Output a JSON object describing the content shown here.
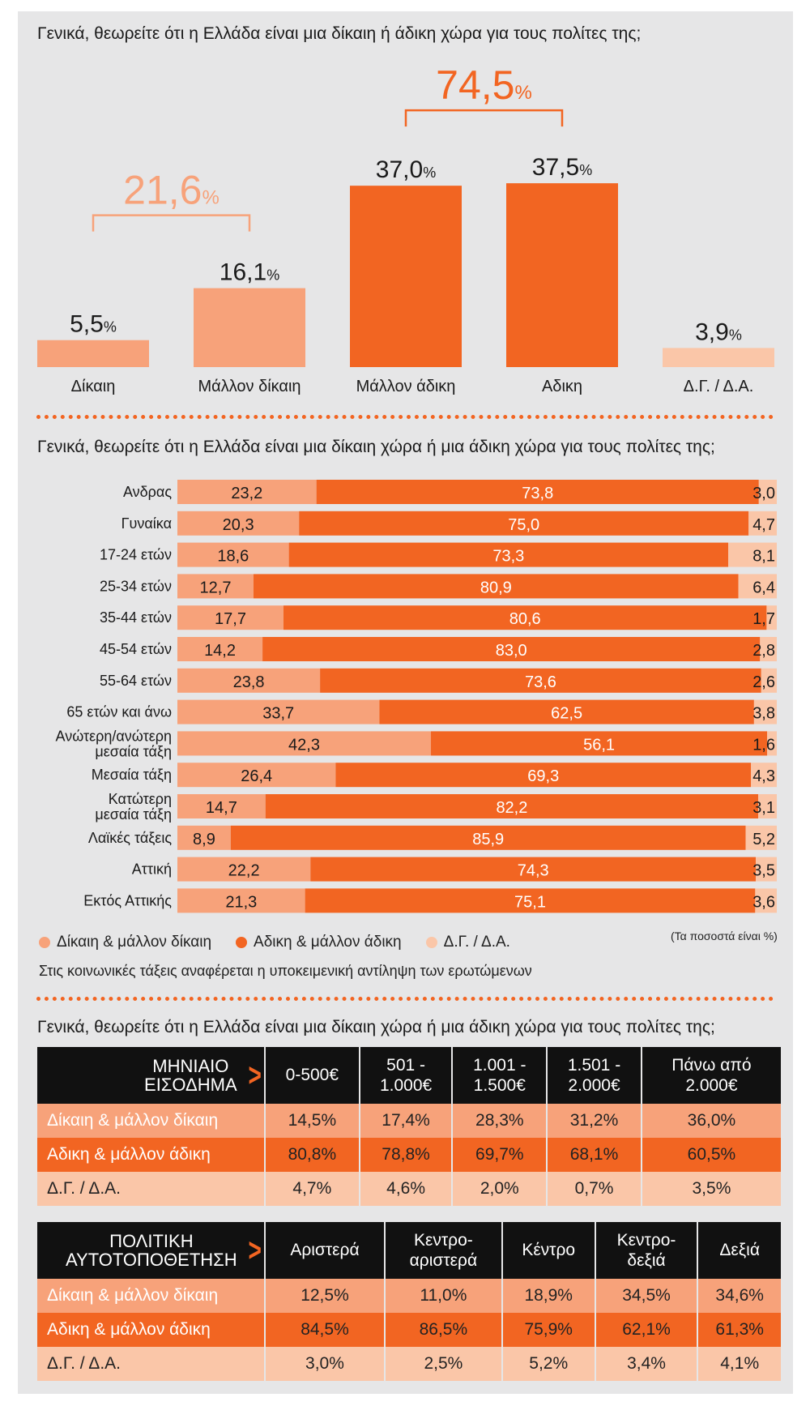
{
  "section1": {
    "question": "Γενικά, θεωρείτε  ότι η Ελλάδα είναι μια δίκαιη ή άδικη χώρα για τους πολίτες της;",
    "group_left": {
      "value": "21,6",
      "unit": "%"
    },
    "group_right": {
      "value": "74,5",
      "unit": "%"
    }
  },
  "section2": {
    "question": "Γενικά, θεωρείτε ότι η Ελλάδα είναι μια δίκαιη χώρα ή μια άδικη χώρα για τους πολίτες της;",
    "legend": [
      "Δίκαιη & μάλλον δίκαιη",
      "Αδικη & μάλλον άδικη",
      "Δ.Γ. / Δ.Α."
    ],
    "units_note": "(Τα ποσοστά είναι %)",
    "footnote": "Στις κοινωνικές τάξεις αναφέρεται η υποκειμενική αντίληψη των ερωτώμενων"
  },
  "section3": {
    "question": "Γενικά, θεωρείτε ότι η Ελλάδα είναι μια δίκαιη χώρα ή μια άδικη χώρα για τους πολίτες της;",
    "income": {
      "header_l1": "ΜΗΝΙΑΙΟ",
      "header_l2": "ΕΙΣΟΔΗΜΑ",
      "cols": [
        [
          "0-500€",
          ""
        ],
        [
          "501 -",
          "1.000€"
        ],
        [
          "1.001 -",
          "1.500€"
        ],
        [
          "1.501 -",
          "2.000€"
        ],
        [
          "Πάνω από",
          "2.000€"
        ]
      ],
      "rows": [
        {
          "label": "Δίκαιη & μάλλον δίκαιη",
          "values": [
            "14,5%",
            "17,4%",
            "28,3%",
            "31,2%",
            "36,0%"
          ]
        },
        {
          "label": "Αδικη & μάλλον άδικη",
          "values": [
            "80,8%",
            "78,8%",
            "69,7%",
            "68,1%",
            "60,5%"
          ]
        },
        {
          "label": "Δ.Γ. / Δ.Α.",
          "values": [
            "4,7%",
            "4,6%",
            "2,0%",
            "0,7%",
            "3,5%"
          ]
        }
      ]
    },
    "politics": {
      "header_l1": "ΠΟΛΙΤΙΚΗ",
      "header_l2": "ΑΥΤΟΤΟΠΟΘΕΤΗΣΗ",
      "cols": [
        [
          "Αριστερά",
          ""
        ],
        [
          "Κεντρο-",
          "αριστερά"
        ],
        [
          "Κέντρο",
          ""
        ],
        [
          "Κεντρο-",
          "δεξιά"
        ],
        [
          "Δεξιά",
          ""
        ]
      ],
      "rows": [
        {
          "label": "Δίκαιη & μάλλον δίκαιη",
          "values": [
            "12,5%",
            "11,0%",
            "18,9%",
            "34,5%",
            "34,6%"
          ]
        },
        {
          "label": "Αδικη & μάλλον άδικη",
          "values": [
            "84,5%",
            "86,5%",
            "75,9%",
            "62,1%",
            "61,3%"
          ]
        },
        {
          "label": "Δ.Γ. / Δ.Α.",
          "values": [
            "3,0%",
            "2,5%",
            "5,2%",
            "3,4%",
            "4,1%"
          ]
        }
      ]
    }
  },
  "chart_data": [
    {
      "type": "bar",
      "title": "Γενικά, θεωρείτε  ότι η Ελλάδα είναι μια δίκαιη ή άδικη χώρα για τους πολίτες της;",
      "categories": [
        "Δίκαιη",
        "Μάλλον δίκαιη",
        "Μάλλον άδικη",
        "Αδικη",
        "Δ.Γ. / Δ.Α."
      ],
      "values": [
        5.5,
        16.1,
        37.0,
        37.5,
        3.9
      ],
      "labels": [
        "5,5",
        "16,1",
        "37,0",
        "37,5",
        "3,9"
      ],
      "unit": "%",
      "colors": [
        "#f7a27a",
        "#f7a27a",
        "#f26522",
        "#f26522",
        "#fac6a8"
      ]
    },
    {
      "type": "bar",
      "stacked": true,
      "orientation": "horizontal",
      "title": "Γενικά, θεωρείτε ότι η Ελλάδα είναι μια δίκαιη χώρα ή μια άδικη χώρα για τους πολίτες της;",
      "categories": [
        [
          "Ανδρας"
        ],
        [
          "Γυναίκα"
        ],
        [
          "17-24 ετών"
        ],
        [
          "25-34 ετών"
        ],
        [
          "35-44 ετών"
        ],
        [
          "45-54 ετών"
        ],
        [
          "55-64 ετών"
        ],
        [
          "65 ετών και άνω"
        ],
        [
          "Ανώτερη/ανώτερη",
          "μεσαία τάξη"
        ],
        [
          "Μεσαία τάξη"
        ],
        [
          "Κατώτερη",
          "μεσαία τάξη"
        ],
        [
          "Λαϊκές τάξεις"
        ],
        [
          "Αττική"
        ],
        [
          "Εκτός Αττικής"
        ]
      ],
      "series": [
        {
          "name": "Δίκαιη & μάλλον δίκαιη",
          "color": "#f7a27a",
          "values": [
            23.2,
            20.3,
            18.6,
            12.7,
            17.7,
            14.2,
            23.8,
            33.7,
            42.3,
            26.4,
            14.7,
            8.9,
            22.2,
            21.3
          ]
        },
        {
          "name": "Αδικη & μάλλον άδικη",
          "color": "#f26522",
          "values": [
            73.8,
            75.0,
            73.3,
            80.9,
            80.6,
            83.0,
            73.6,
            62.5,
            56.1,
            69.3,
            82.2,
            85.9,
            74.3,
            75.1
          ]
        },
        {
          "name": "Δ.Γ. / Δ.Α.",
          "color": "#fac6a8",
          "values": [
            3.0,
            4.7,
            8.1,
            6.4,
            1.7,
            2.8,
            2.6,
            3.8,
            1.6,
            4.3,
            3.1,
            5.2,
            3.5,
            3.6
          ]
        }
      ]
    }
  ]
}
